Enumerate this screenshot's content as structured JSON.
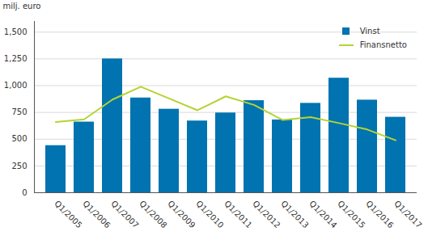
{
  "chart_data": {
    "type": "bar",
    "y_label": "milj. euro",
    "categories": [
      "Q1/2005",
      "Q1/2006",
      "Q1/2007",
      "Q1/2008",
      "Q1/2009",
      "Q1/2010",
      "Q1/2011",
      "Q1/2012",
      "Q1/2013",
      "Q1/2014",
      "Q1/2015",
      "Q1/2016",
      "Q1/2017"
    ],
    "series": [
      {
        "name": "Vinst",
        "type": "bar",
        "color": "#0073b0",
        "marker": "square",
        "values": [
          440,
          660,
          1250,
          885,
          780,
          670,
          745,
          860,
          680,
          835,
          1070,
          865,
          705
        ]
      },
      {
        "name": "Finansnetto",
        "type": "line",
        "color": "#b5d334",
        "line_style": "solid",
        "values": [
          660,
          685,
          870,
          990,
          880,
          770,
          900,
          820,
          680,
          705,
          650,
          590,
          490
        ]
      }
    ],
    "ylim": [
      0,
      1600
    ],
    "yticks": [
      0,
      250,
      500,
      750,
      1000,
      1250,
      1500
    ],
    "grid": true,
    "legend": "top-right"
  }
}
